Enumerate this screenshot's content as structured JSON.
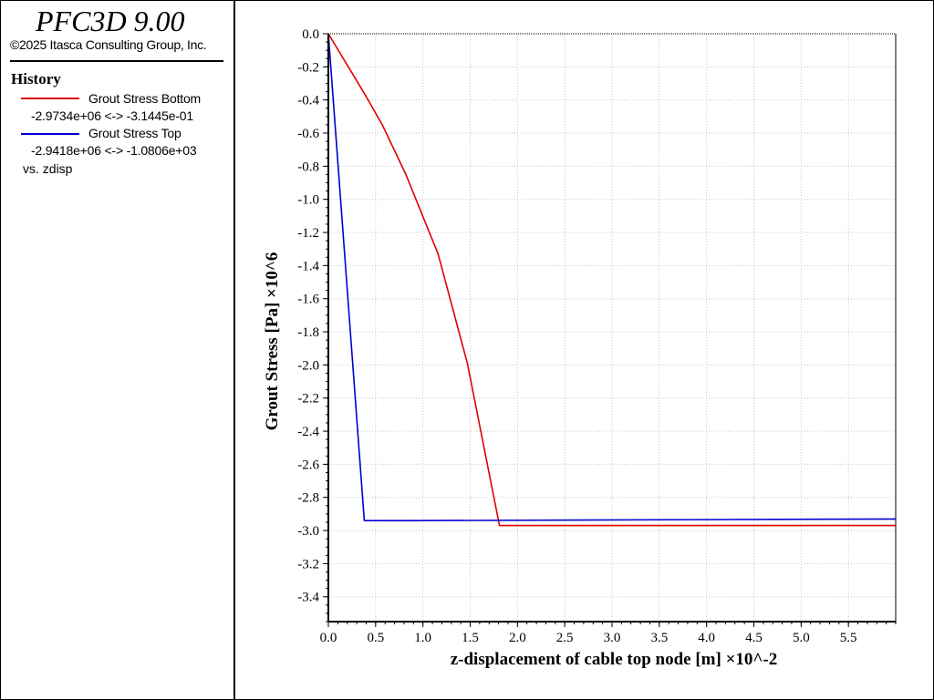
{
  "app": {
    "title": "PFC3D 9.00",
    "copyright": "©2025 Itasca Consulting Group, Inc."
  },
  "panel": {
    "section": "History",
    "legend": [
      {
        "name": "Grout Stress Bottom",
        "range": "-2.9734e+06 <-> -3.1445e-01",
        "color": "#e00000"
      },
      {
        "name": "Grout Stress Top",
        "range": "-2.9418e+06 <-> -1.0806e+03",
        "color": "#0000d0"
      }
    ],
    "vs_label": "vs. zdisp"
  },
  "chart_data": {
    "type": "line",
    "xlabel": "z-displacement of cable top node [m]  ×10^-2",
    "ylabel": "Grout Stress [Pa]  ×10^6",
    "xlim": [
      0,
      6.0
    ],
    "ylim": [
      -3.55,
      0.0
    ],
    "xticks": [
      "0.0",
      "0.5",
      "1.0",
      "1.5",
      "2.0",
      "2.5",
      "3.0",
      "3.5",
      "4.0",
      "4.5",
      "5.0",
      "5.5"
    ],
    "yticks": [
      "0.0",
      "-0.2",
      "-0.4",
      "-0.6",
      "-0.8",
      "-1.0",
      "-1.2",
      "-1.4",
      "-1.6",
      "-1.8",
      "-2.0",
      "-2.2",
      "-2.4",
      "-2.6",
      "-2.8",
      "-3.0",
      "-3.2",
      "-3.4"
    ],
    "grid": true,
    "series": [
      {
        "name": "Grout Stress Bottom",
        "color": "#e00000",
        "x": [
          0.0,
          0.38,
          0.57,
          0.82,
          1.16,
          1.47,
          1.81,
          6.0
        ],
        "y": [
          0.0,
          -0.36,
          -0.55,
          -0.85,
          -1.33,
          -1.99,
          -2.97,
          -2.97
        ]
      },
      {
        "name": "Grout Stress Top",
        "color": "#0000d0",
        "x": [
          0.0,
          0.38,
          0.82,
          6.0
        ],
        "y": [
          0.0,
          -2.94,
          -2.94,
          -2.93
        ]
      }
    ]
  }
}
